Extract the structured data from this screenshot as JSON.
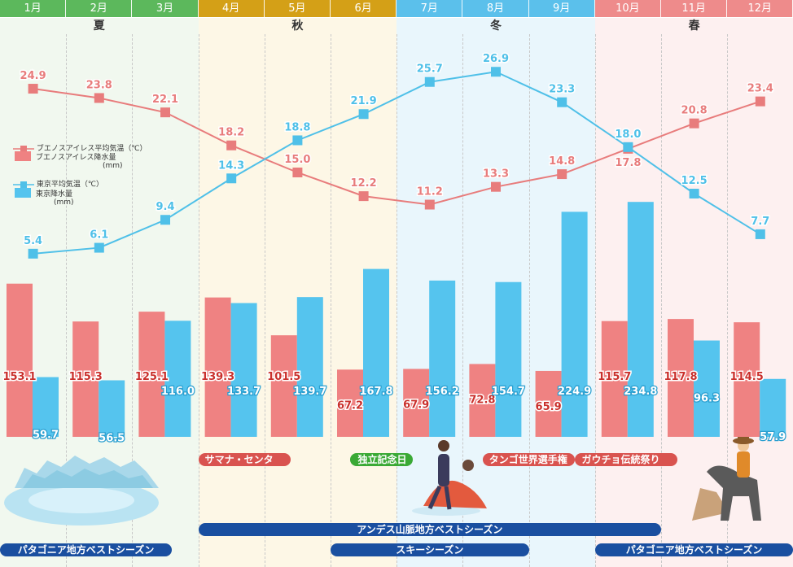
{
  "months": [
    "1月",
    "2月",
    "3月",
    "4月",
    "5月",
    "6月",
    "7月",
    "8月",
    "9月",
    "10月",
    "11月",
    "12月"
  ],
  "seasons": [
    {
      "label": "夏",
      "start": 0,
      "end": 3,
      "header_color": "#5cb85c",
      "bg_color": "#f1f8ef"
    },
    {
      "label": "秋",
      "start": 3,
      "end": 6,
      "header_color": "#d4a017",
      "bg_color": "#fdf7e6"
    },
    {
      "label": "冬",
      "start": 6,
      "end": 9,
      "header_color": "#5bc0eb",
      "bg_color": "#e9f6fc"
    },
    {
      "label": "春",
      "start": 9,
      "end": 12,
      "header_color": "#ee8b8b",
      "bg_color": "#fdf0f0"
    }
  ],
  "legend": {
    "ba_temp": "ブエノスアイレス平均気温（℃）",
    "ba_precip": "ブエノスアイレス降水量",
    "ba_precip_unit": "(mm)",
    "tokyo_temp": "東京平均気温（℃）",
    "tokyo_precip": "東京降水量",
    "tokyo_precip_unit": "(mm)"
  },
  "chart_data": {
    "type": "bar+line",
    "categories": [
      "1月",
      "2月",
      "3月",
      "4月",
      "5月",
      "6月",
      "7月",
      "8月",
      "9月",
      "10月",
      "11月",
      "12月"
    ],
    "series": [
      {
        "name": "ブエノスアイレス平均気温（℃）",
        "kind": "line",
        "color": "#e87c7c",
        "values": [
          24.9,
          23.8,
          22.1,
          18.2,
          15.0,
          12.2,
          11.2,
          13.3,
          14.8,
          17.8,
          20.8,
          23.4
        ]
      },
      {
        "name": "東京平均気温（℃）",
        "kind": "line",
        "color": "#4fc0e8",
        "values": [
          5.4,
          6.1,
          9.4,
          14.3,
          18.8,
          21.9,
          25.7,
          26.9,
          23.3,
          18.0,
          12.5,
          7.7
        ]
      },
      {
        "name": "ブエノスアイレス降水量(mm)",
        "kind": "bar",
        "color": "#ef8282",
        "values": [
          153.1,
          115.3,
          125.1,
          139.3,
          101.5,
          67.2,
          67.9,
          72.8,
          65.9,
          115.7,
          117.8,
          114.5
        ]
      },
      {
        "name": "東京降水量(mm)",
        "kind": "bar",
        "color": "#55c4ee",
        "values": [
          59.7,
          56.5,
          116.0,
          133.7,
          139.7,
          167.8,
          156.2,
          154.7,
          224.9,
          234.8,
          96.3,
          57.9
        ]
      }
    ],
    "temp_range": [
      0,
      30
    ],
    "precip_range": [
      0,
      300
    ]
  },
  "events": [
    {
      "label": "サマナ・センタ",
      "start": 3,
      "end": 4.4,
      "color": "#d9534f"
    },
    {
      "label": "独立記念日",
      "start": 5.3,
      "end": 6.25,
      "color": "#3aa935"
    },
    {
      "label": "タンゴ世界選手権",
      "start": 7.3,
      "end": 8.7,
      "color": "#d9534f"
    },
    {
      "label": "ガウチョ伝統祭り",
      "start": 8.7,
      "end": 10.25,
      "color": "#d9534f"
    },
    {
      "label": "アンデス山脈地方ベストシーズン",
      "start": 3,
      "end": 10,
      "color": "#1a4fa0"
    },
    {
      "label": "パタゴニア地方ベストシーズン",
      "start": 0,
      "end": 2.6,
      "color": "#1a4fa0"
    },
    {
      "label": "スキーシーズン",
      "start": 5,
      "end": 8,
      "color": "#1a4fa0"
    },
    {
      "label": "パタゴニア地方ベストシーズン",
      "start": 9,
      "end": 12,
      "color": "#1a4fa0"
    }
  ]
}
